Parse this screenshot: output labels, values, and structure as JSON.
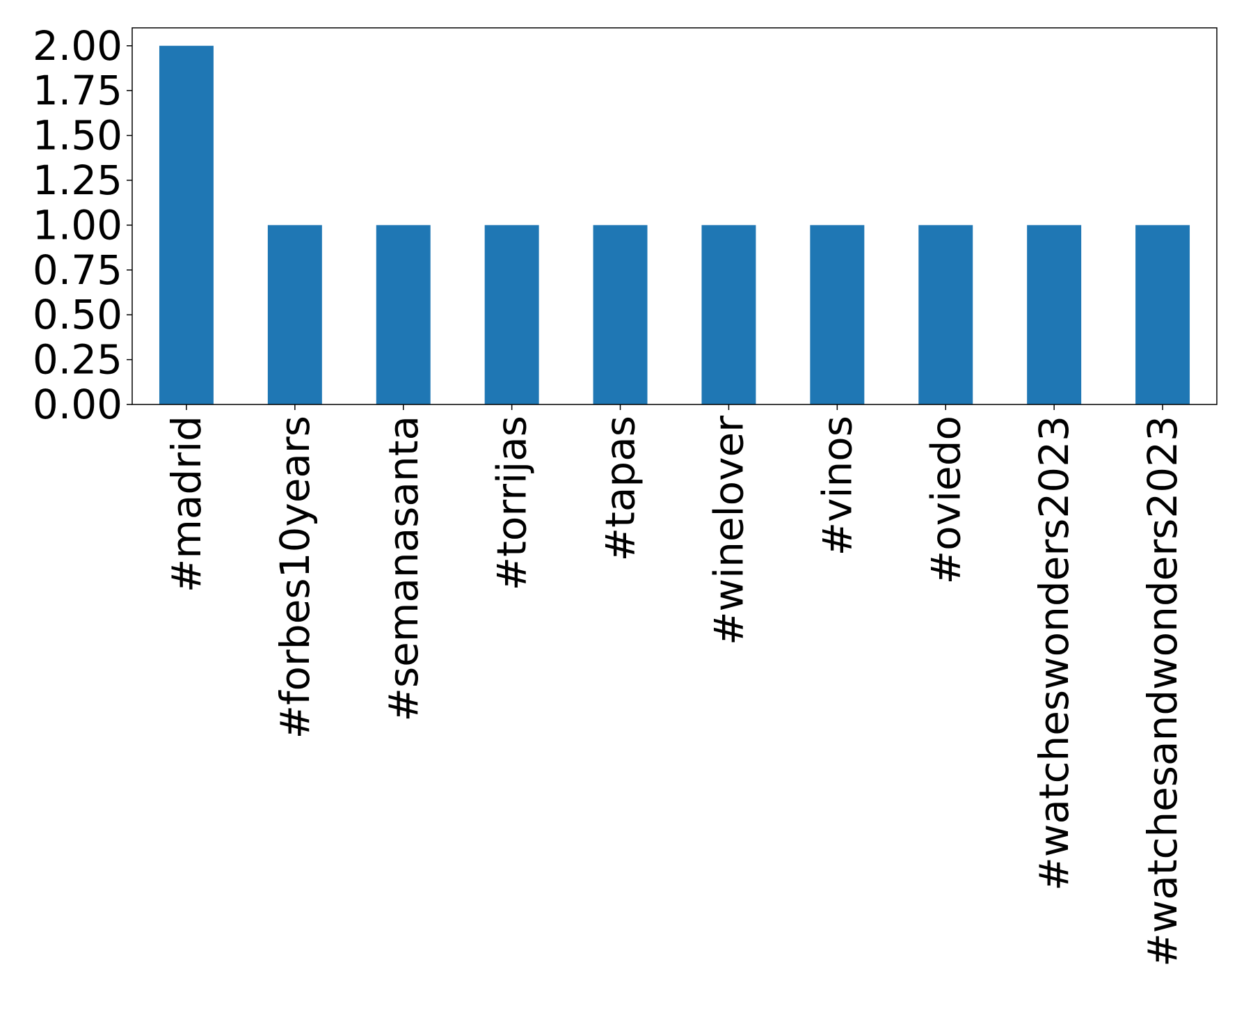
{
  "chart_data": {
    "type": "bar",
    "title": "",
    "xlabel": "",
    "ylabel": "",
    "categories": [
      "#madrid",
      "#forbes10years",
      "#semanasanta",
      "#torrijas",
      "#tapas",
      "#winelover",
      "#vinos",
      "#oviedo",
      "#watcheswonders2023",
      "#watchesandwonders2023"
    ],
    "series": [
      {
        "values": [
          2,
          1,
          1,
          1,
          1,
          1,
          1,
          1,
          1,
          1
        ],
        "color": "#1f77b4"
      }
    ],
    "ylim": [
      0,
      2.1
    ],
    "yticks": [
      "0.00",
      "0.25",
      "0.50",
      "0.75",
      "1.00",
      "1.25",
      "1.50",
      "1.75",
      "2.00"
    ],
    "grid": false,
    "legend": "none"
  }
}
